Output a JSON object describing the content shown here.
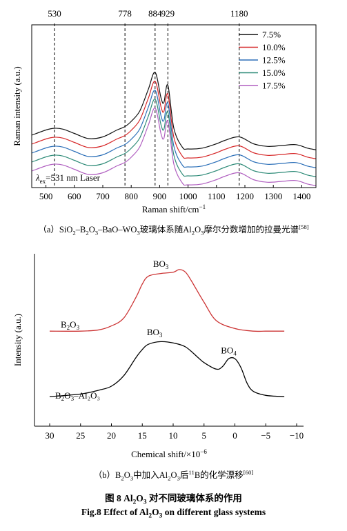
{
  "panel_a": {
    "chart_data": {
      "type": "line",
      "xlabel_text": "Raman shift/cm",
      "xlabel_sup": "−1",
      "ylabel": "Raman intensity (a.u.)",
      "xlim": [
        450,
        1450
      ],
      "xticks": [
        500,
        600,
        700,
        800,
        900,
        1000,
        1100,
        1200,
        1300,
        1400
      ],
      "yticks": false,
      "grid": false,
      "legend_placement": "top-right",
      "reference_lines": [
        {
          "x": 530,
          "label": "530"
        },
        {
          "x": 778,
          "label": "778"
        },
        {
          "x": 884,
          "label": "884"
        },
        {
          "x": 929,
          "label": "929"
        },
        {
          "x": 1180,
          "label": "1180"
        }
      ],
      "annotation_prefix": "λ",
      "annotation_sub": "ex",
      "annotation_rest": "=531 nm Laser",
      "series": [
        {
          "name": "7.5%",
          "color": "#111111",
          "offset": 4,
          "x": [
            450,
            500,
            530,
            560,
            600,
            650,
            700,
            750,
            778,
            800,
            830,
            860,
            884,
            905,
            915,
            929,
            950,
            980,
            1000,
            1050,
            1100,
            1130,
            1180,
            1230,
            1280,
            1330,
            1380,
            1420,
            1450
          ],
          "y": [
            72,
            78,
            80,
            79,
            74,
            68,
            70,
            78,
            82,
            88,
            100,
            125,
            145,
            115,
            110,
            130,
            80,
            58,
            56,
            57,
            62,
            66,
            70,
            62,
            59,
            60,
            61,
            57,
            55
          ]
        },
        {
          "name": "10.0%",
          "color": "#d62728",
          "offset": 3,
          "x": [
            450,
            500,
            530,
            560,
            600,
            650,
            700,
            750,
            778,
            800,
            830,
            860,
            884,
            905,
            915,
            929,
            950,
            980,
            1000,
            1050,
            1100,
            1130,
            1180,
            1230,
            1280,
            1330,
            1380,
            1420,
            1450
          ],
          "y": [
            72,
            78,
            80,
            79,
            74,
            68,
            70,
            78,
            82,
            88,
            100,
            125,
            145,
            115,
            110,
            130,
            80,
            58,
            56,
            57,
            62,
            66,
            70,
            62,
            59,
            60,
            61,
            57,
            55
          ]
        },
        {
          "name": "12.5%",
          "color": "#2b6fb8",
          "offset": 2,
          "x": [
            450,
            500,
            530,
            560,
            600,
            650,
            700,
            750,
            778,
            800,
            830,
            860,
            884,
            905,
            915,
            929,
            950,
            980,
            1000,
            1050,
            1100,
            1130,
            1180,
            1230,
            1280,
            1330,
            1380,
            1420,
            1450
          ],
          "y": [
            72,
            78,
            80,
            79,
            74,
            68,
            70,
            78,
            82,
            88,
            100,
            125,
            145,
            115,
            110,
            130,
            80,
            58,
            56,
            57,
            62,
            66,
            70,
            62,
            59,
            60,
            61,
            57,
            55
          ]
        },
        {
          "name": "15.0%",
          "color": "#2e8b78",
          "offset": 1,
          "x": [
            450,
            500,
            530,
            560,
            600,
            650,
            700,
            750,
            778,
            800,
            830,
            860,
            884,
            905,
            915,
            929,
            950,
            980,
            1000,
            1050,
            1100,
            1130,
            1180,
            1230,
            1280,
            1330,
            1380,
            1420,
            1450
          ],
          "y": [
            72,
            78,
            80,
            79,
            74,
            68,
            70,
            78,
            82,
            88,
            100,
            125,
            145,
            115,
            110,
            130,
            80,
            58,
            56,
            57,
            62,
            66,
            70,
            62,
            59,
            60,
            61,
            57,
            55
          ]
        },
        {
          "name": "17.5%",
          "color": "#b05fc0",
          "offset": 0,
          "x": [
            450,
            500,
            530,
            560,
            600,
            650,
            700,
            750,
            778,
            800,
            830,
            860,
            884,
            905,
            915,
            929,
            950,
            980,
            1000,
            1050,
            1100,
            1130,
            1180,
            1230,
            1280,
            1330,
            1380,
            1420,
            1450
          ],
          "y": [
            72,
            78,
            80,
            79,
            74,
            68,
            70,
            78,
            82,
            88,
            100,
            125,
            145,
            115,
            110,
            130,
            80,
            58,
            56,
            57,
            62,
            66,
            70,
            62,
            59,
            60,
            61,
            57,
            55
          ]
        }
      ]
    }
  },
  "panel_b": {
    "chart_data": {
      "type": "line",
      "xlabel_text": "Chemical shift/×10",
      "xlabel_sup": "−6",
      "ylabel": "Intensity (a.u.)",
      "xlim": [
        30,
        -10
      ],
      "xticks": [
        30,
        25,
        20,
        15,
        10,
        5,
        0,
        -5,
        -10
      ],
      "xtick_labels": [
        "30",
        "25",
        "20",
        "15",
        "10",
        "5",
        "0",
        "−5",
        "−10"
      ],
      "yticks": false,
      "grid": false,
      "series": [
        {
          "name": "B₂O₃",
          "color": "#cc3333",
          "x": [
            30,
            25,
            22,
            20,
            18,
            16,
            15,
            14,
            12,
            10,
            9,
            8,
            7,
            5,
            3,
            0,
            -3,
            -5,
            -8
          ],
          "y": [
            62,
            62,
            63,
            66,
            72,
            88,
            98,
            104,
            106,
            107,
            109,
            107,
            100,
            84,
            70,
            64,
            62,
            62,
            62
          ],
          "peak_labels": [
            {
              "x": 12,
              "y": 111,
              "text": "BO",
              "sub": "3"
            }
          ]
        },
        {
          "name": "B₂O₃–Al₂O₃",
          "color": "#000000",
          "x": [
            30,
            25,
            22,
            20,
            18,
            16,
            15,
            14,
            12,
            10,
            8,
            6,
            5,
            3,
            2,
            1,
            0,
            -1,
            -2,
            -3,
            -5,
            -8
          ],
          "y": [
            12,
            14,
            17,
            20,
            28,
            42,
            48,
            52,
            54,
            53,
            50,
            42,
            38,
            33,
            35,
            41,
            41,
            34,
            22,
            16,
            13,
            12
          ],
          "peak_labels": [
            {
              "x": 13,
              "y": 59,
              "text": "BO",
              "sub": "3"
            },
            {
              "x": 1,
              "y": 45,
              "text": "BO",
              "sub": "4"
            }
          ]
        }
      ],
      "series_labels": [
        {
          "base": "B",
          "s1": "2",
          "mid": "O",
          "s2": "3",
          "rest": ""
        },
        {
          "base": "B",
          "s1": "2",
          "mid": "O",
          "s2": "3",
          "rest": "–Al₂O₃"
        }
      ]
    }
  },
  "captions": {
    "a_prefix": "（a）SiO",
    "a_s1": "2",
    "a_m1": "–B",
    "a_s2": "2",
    "a_m2": "O",
    "a_s3": "3",
    "a_m3": "–BaO–WO",
    "a_s4": "3",
    "a_m4": "玻璃体系随Al",
    "a_s5": "2",
    "a_m5": "O",
    "a_s6": "3",
    "a_m6": "摩尔分数增加的拉曼光谱",
    "a_ref": "[58]",
    "b_prefix": "（b）B",
    "b_s1": "2",
    "b_m1": "O",
    "b_s2": "3",
    "b_m2": "中加入Al",
    "b_s3": "2",
    "b_m3": "O",
    "b_s4": "3",
    "b_m4": "后",
    "b_sup": "11",
    "b_m5": "B的化学漂移",
    "b_ref": "[60]",
    "fig_cn_1": "图 8   Al",
    "fig_cn_s1": "2",
    "fig_cn_2": "O",
    "fig_cn_s2": "3",
    "fig_cn_3": " 对不同玻璃体系的作用",
    "fig_en_1": "Fig.8   Effect of Al",
    "fig_en_s1": "2",
    "fig_en_2": "O",
    "fig_en_s2": "3",
    "fig_en_3": " on different glass systems"
  }
}
